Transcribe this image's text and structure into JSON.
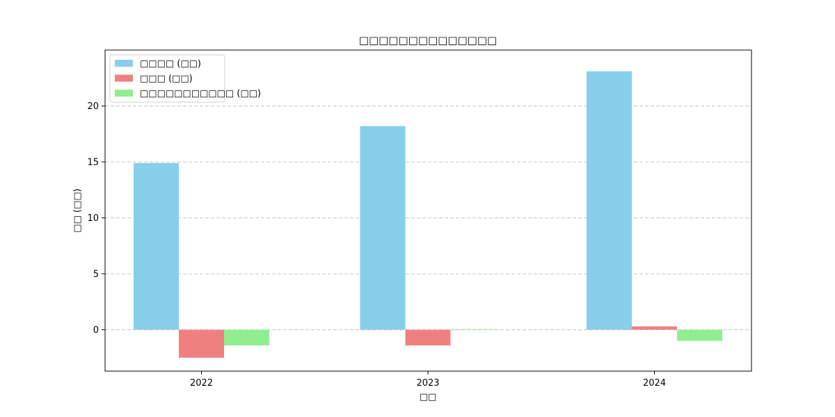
{
  "chart_data": {
    "type": "bar",
    "title": "□□□□□□□□□□□□□□",
    "xlabel": "□□",
    "ylabel": "□□ (□□)",
    "categories": [
      "2022",
      "2023",
      "2024"
    ],
    "ylim": [
      -3.7,
      25.0
    ],
    "yticks": [
      0,
      5,
      10,
      15,
      20
    ],
    "grid": "y-dashed",
    "legend_position": "top-left",
    "series": [
      {
        "name": "□□□□ (□□)",
        "color": "#87ceeb",
        "values": [
          14.9,
          18.2,
          23.1
        ]
      },
      {
        "name": "□□□ (□□)",
        "color": "#f08080",
        "values": [
          -2.5,
          -1.4,
          0.3
        ]
      },
      {
        "name": "□□□□□□□□□□□ (□□)",
        "color": "#90ee90",
        "values": [
          -1.4,
          0.05,
          -1.0
        ]
      }
    ]
  }
}
